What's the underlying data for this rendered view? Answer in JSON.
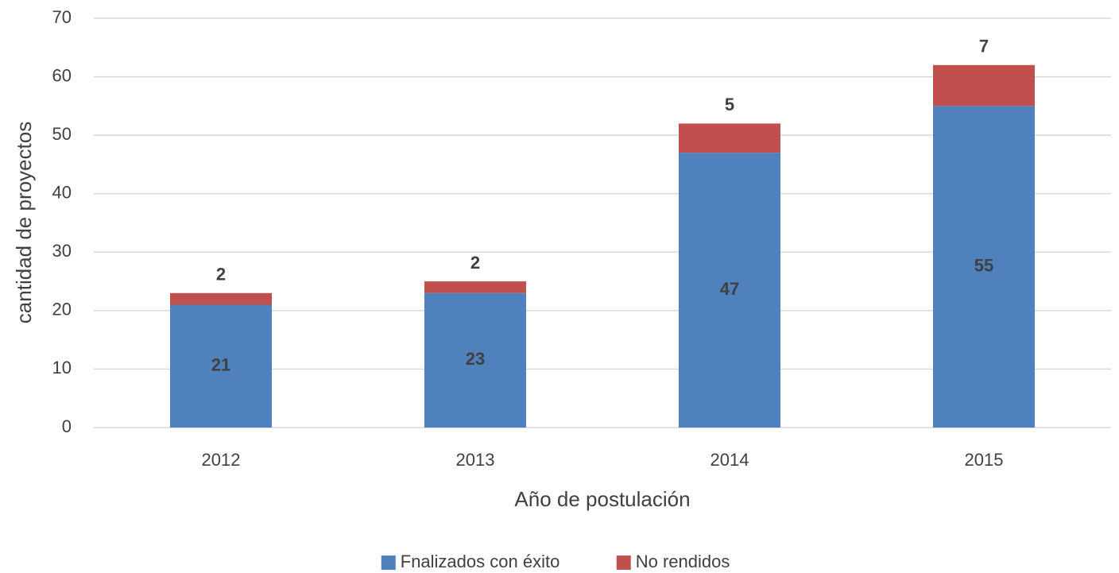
{
  "chart_data": {
    "type": "stacked_bar",
    "categories": [
      "2012",
      "2013",
      "2014",
      "2015"
    ],
    "series": [
      {
        "name": "Fnalizados con éxito",
        "color": "#4f81bd",
        "values": [
          21,
          23,
          47,
          55
        ]
      },
      {
        "name": "No rendidos",
        "color": "#c0504d",
        "values": [
          2,
          2,
          5,
          7
        ]
      }
    ],
    "xlabel": "Año de postulación",
    "ylabel": "cantidad de proyectos",
    "ylim": [
      0,
      70
    ],
    "yticks": [
      0,
      10,
      20,
      30,
      40,
      50,
      60,
      70
    ],
    "grid": true,
    "legend": "bottom"
  }
}
